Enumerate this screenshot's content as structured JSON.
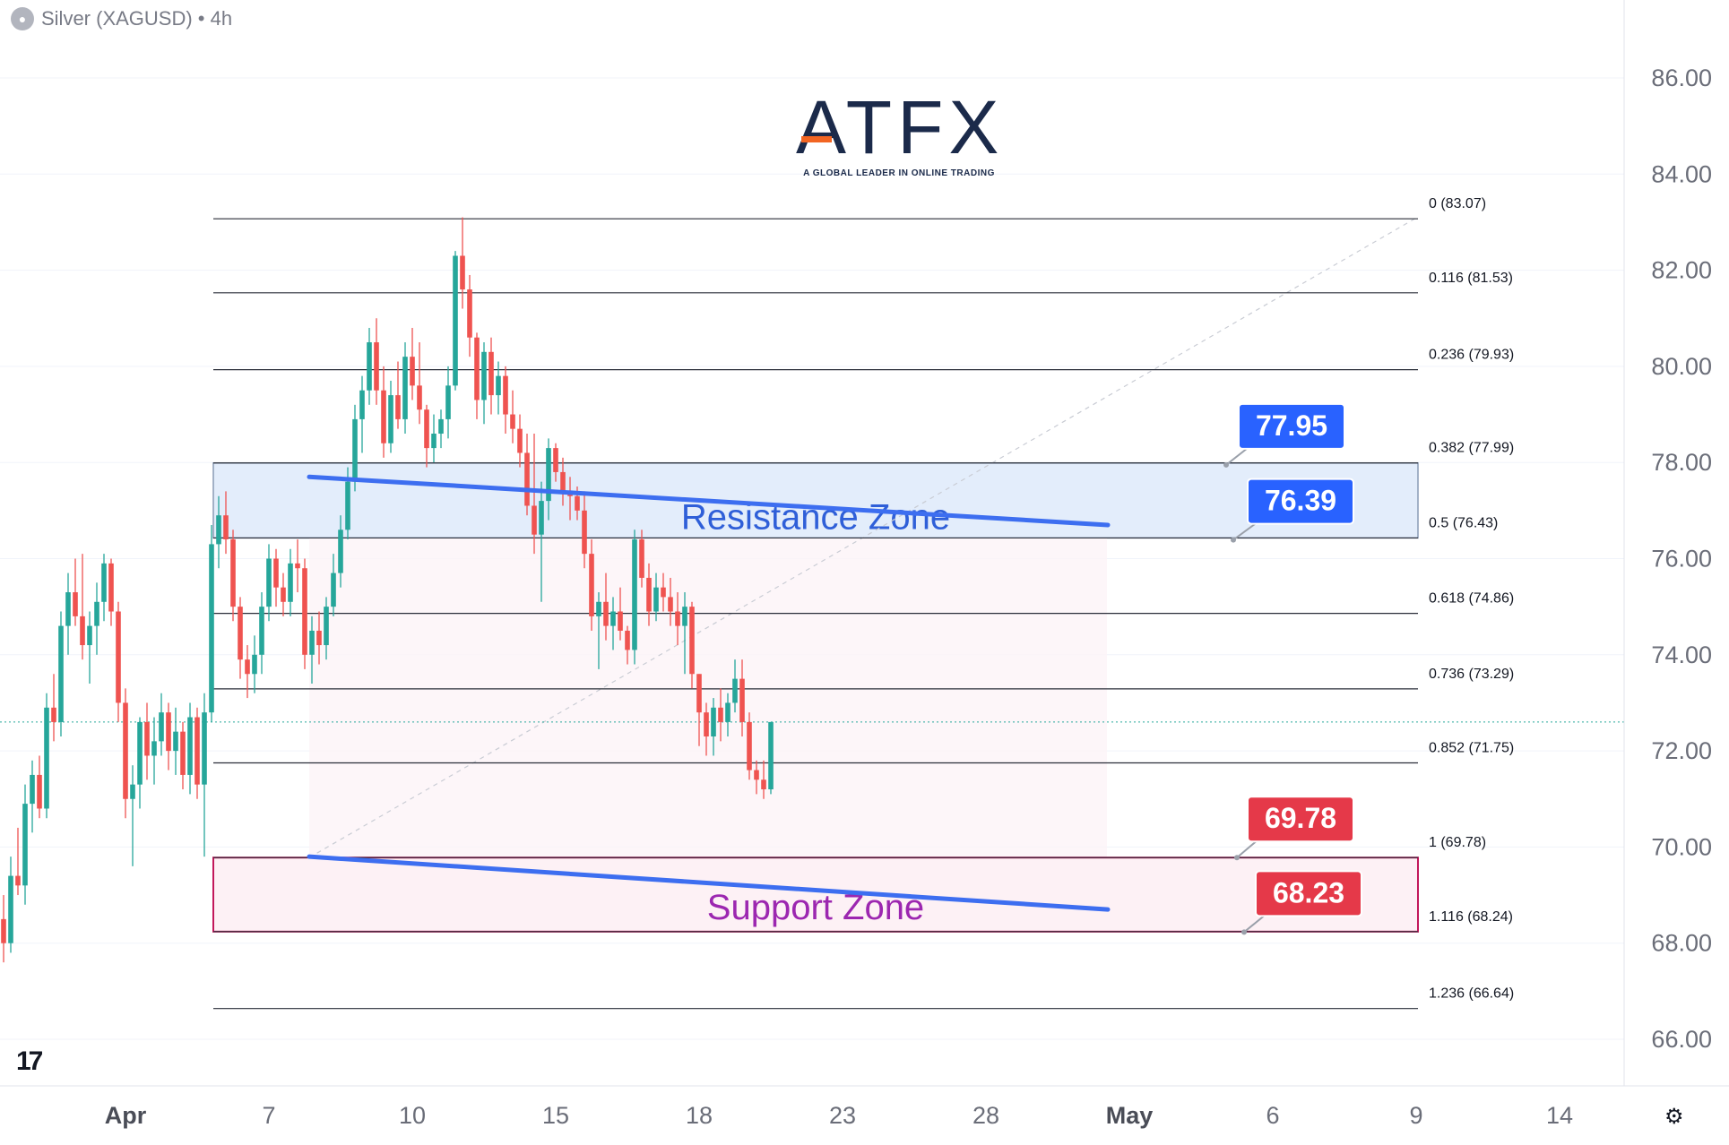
{
  "header": {
    "symbol_icon": "silver-icon",
    "title": "Silver (XAGUSD) • 4h"
  },
  "logo": {
    "text": "ATFX",
    "tagline": "A GLOBAL LEADER IN ONLINE TRADING"
  },
  "tv_mark": "17",
  "settings_icon": "⚙",
  "colors": {
    "up": "#26a69a",
    "down": "#ef5350",
    "trend": "#3d6ef0",
    "resistance_fill": "#e3edfb",
    "support_fill": "#fdf1f5",
    "support_border": "#c2185b",
    "label_blue": "#2962ff",
    "label_red": "#e53949"
  },
  "chart_data": {
    "type": "candlestick",
    "ylim": [
      65.2,
      87.2
    ],
    "y_ticks": [
      "86.00",
      "84.00",
      "82.00",
      "80.00",
      "78.00",
      "76.00",
      "74.00",
      "72.00",
      "70.00",
      "68.00",
      "66.00"
    ],
    "x_ticks": [
      "Apr",
      "7",
      "10",
      "15",
      "18",
      "23",
      "28",
      "May",
      "6",
      "9",
      "14"
    ],
    "grid": true,
    "current_price": 72.6,
    "fib_levels": [
      {
        "label": "0 (83.07)",
        "value": 83.07
      },
      {
        "label": "0.116 (81.53)",
        "value": 81.53
      },
      {
        "label": "0.236 (79.93)",
        "value": 79.93
      },
      {
        "label": "0.382 (77.99)",
        "value": 77.99
      },
      {
        "label": "0.5 (76.43)",
        "value": 76.43
      },
      {
        "label": "0.618 (74.86)",
        "value": 74.86
      },
      {
        "label": "0.736 (73.29)",
        "value": 73.29
      },
      {
        "label": "0.852 (71.75)",
        "value": 71.75
      },
      {
        "label": "1 (69.78)",
        "value": 69.78
      },
      {
        "label": "1.116 (68.24)",
        "value": 68.24
      },
      {
        "label": "1.236 (66.64)",
        "value": 66.64
      }
    ],
    "zones": [
      {
        "name": "Resistance Zone",
        "top": 77.99,
        "bottom": 76.43
      },
      {
        "name": "Support Zone",
        "top": 69.78,
        "bottom": 68.24
      }
    ],
    "price_labels": [
      {
        "text": "77.95",
        "value": 77.95,
        "color": "blue"
      },
      {
        "text": "76.39",
        "value": 76.39,
        "color": "blue"
      },
      {
        "text": "69.78",
        "value": 69.78,
        "color": "red"
      },
      {
        "text": "68.23",
        "value": 68.23,
        "color": "red"
      }
    ],
    "trendlines": [
      {
        "start_value": 77.7,
        "end_value": 76.7
      },
      {
        "start_value": 69.8,
        "end_value": 68.7
      }
    ],
    "candles": [
      [
        68.5,
        69.0,
        67.6,
        68.0
      ],
      [
        68.0,
        69.8,
        67.8,
        69.4
      ],
      [
        69.4,
        70.4,
        69.0,
        69.2
      ],
      [
        69.2,
        71.3,
        68.8,
        70.9
      ],
      [
        70.9,
        71.8,
        70.3,
        71.5
      ],
      [
        71.5,
        71.9,
        70.6,
        70.8
      ],
      [
        70.8,
        73.2,
        70.6,
        72.9
      ],
      [
        72.9,
        73.6,
        72.2,
        72.6
      ],
      [
        72.6,
        74.9,
        72.3,
        74.6
      ],
      [
        74.6,
        75.7,
        74.0,
        75.3
      ],
      [
        75.3,
        76.0,
        74.6,
        74.8
      ],
      [
        74.8,
        76.1,
        73.9,
        74.2
      ],
      [
        74.2,
        74.9,
        73.4,
        74.6
      ],
      [
        74.6,
        75.5,
        74.0,
        75.1
      ],
      [
        75.1,
        76.1,
        74.7,
        75.9
      ],
      [
        75.9,
        76.0,
        74.6,
        74.9
      ],
      [
        74.9,
        75.1,
        72.6,
        73.0
      ],
      [
        73.0,
        73.3,
        70.6,
        71.0
      ],
      [
        71.0,
        71.7,
        69.6,
        71.3
      ],
      [
        71.3,
        72.7,
        70.8,
        72.6
      ],
      [
        72.6,
        73.0,
        71.4,
        71.9
      ],
      [
        71.9,
        72.7,
        71.3,
        72.2
      ],
      [
        72.2,
        73.2,
        71.9,
        72.8
      ],
      [
        72.8,
        73.0,
        71.6,
        72.0
      ],
      [
        72.0,
        72.9,
        71.5,
        72.4
      ],
      [
        72.4,
        72.6,
        71.2,
        71.5
      ],
      [
        71.5,
        73.0,
        71.1,
        72.7
      ],
      [
        72.7,
        72.9,
        71.0,
        71.3
      ],
      [
        71.3,
        73.2,
        69.8,
        72.8
      ],
      [
        72.8,
        76.7,
        72.6,
        76.3
      ],
      [
        76.3,
        77.3,
        75.8,
        76.9
      ],
      [
        76.9,
        77.4,
        76.1,
        76.4
      ],
      [
        76.4,
        76.6,
        74.7,
        75.0
      ],
      [
        75.0,
        75.2,
        73.5,
        73.9
      ],
      [
        73.9,
        74.2,
        73.1,
        73.6
      ],
      [
        73.6,
        74.4,
        73.2,
        74.0
      ],
      [
        74.0,
        75.3,
        73.6,
        75.0
      ],
      [
        75.0,
        76.3,
        74.7,
        76.0
      ],
      [
        76.0,
        76.2,
        75.0,
        75.4
      ],
      [
        75.4,
        75.7,
        74.8,
        75.1
      ],
      [
        75.1,
        76.2,
        74.8,
        75.9
      ],
      [
        75.9,
        76.4,
        75.3,
        75.8
      ],
      [
        75.8,
        76.0,
        73.7,
        74.0
      ],
      [
        74.0,
        74.8,
        73.4,
        74.5
      ],
      [
        74.5,
        74.9,
        73.8,
        74.2
      ],
      [
        74.2,
        75.2,
        73.9,
        75.0
      ],
      [
        75.0,
        76.1,
        74.8,
        75.7
      ],
      [
        75.7,
        76.9,
        75.4,
        76.6
      ],
      [
        76.6,
        77.9,
        76.4,
        77.6
      ],
      [
        77.6,
        79.2,
        77.4,
        78.9
      ],
      [
        78.9,
        79.8,
        78.2,
        79.5
      ],
      [
        79.5,
        80.8,
        79.2,
        80.5
      ],
      [
        80.5,
        81.0,
        79.2,
        79.5
      ],
      [
        79.5,
        80.0,
        78.1,
        78.4
      ],
      [
        78.4,
        79.7,
        78.2,
        79.4
      ],
      [
        79.4,
        80.1,
        78.7,
        78.9
      ],
      [
        78.9,
        80.5,
        78.6,
        80.2
      ],
      [
        80.2,
        80.8,
        79.3,
        79.6
      ],
      [
        79.6,
        80.5,
        78.8,
        79.1
      ],
      [
        79.1,
        79.2,
        77.9,
        78.3
      ],
      [
        78.3,
        79.0,
        78.0,
        78.6
      ],
      [
        78.6,
        79.1,
        78.3,
        78.9
      ],
      [
        78.9,
        80.0,
        78.5,
        79.6
      ],
      [
        79.6,
        82.4,
        79.5,
        82.3
      ],
      [
        82.3,
        83.1,
        81.2,
        81.6
      ],
      [
        81.6,
        81.9,
        80.2,
        80.6
      ],
      [
        80.6,
        80.7,
        78.9,
        79.3
      ],
      [
        79.3,
        80.5,
        78.8,
        80.3
      ],
      [
        80.3,
        80.6,
        79.0,
        79.4
      ],
      [
        79.4,
        80.1,
        79.0,
        79.8
      ],
      [
        79.8,
        80.0,
        78.6,
        79.0
      ],
      [
        79.0,
        79.5,
        78.4,
        78.7
      ],
      [
        78.7,
        79.0,
        77.9,
        78.2
      ],
      [
        78.2,
        78.6,
        76.9,
        77.1
      ],
      [
        77.1,
        78.6,
        76.1,
        76.5
      ],
      [
        76.5,
        77.6,
        75.1,
        77.2
      ],
      [
        77.2,
        78.5,
        76.8,
        78.3
      ],
      [
        78.3,
        78.4,
        77.6,
        77.8
      ],
      [
        77.8,
        78.1,
        77.1,
        77.4
      ],
      [
        77.4,
        77.7,
        76.8,
        77.3
      ],
      [
        77.3,
        77.5,
        76.8,
        77.0
      ],
      [
        77.0,
        77.4,
        75.8,
        76.1
      ],
      [
        76.1,
        76.4,
        74.5,
        74.8
      ],
      [
        74.8,
        75.3,
        73.7,
        75.1
      ],
      [
        75.1,
        75.7,
        74.3,
        74.6
      ],
      [
        74.6,
        75.2,
        74.1,
        74.9
      ],
      [
        74.9,
        75.4,
        74.3,
        74.5
      ],
      [
        74.5,
        74.6,
        73.8,
        74.1
      ],
      [
        74.1,
        76.6,
        73.8,
        76.4
      ],
      [
        76.4,
        76.6,
        75.4,
        75.6
      ],
      [
        75.6,
        75.9,
        74.6,
        74.9
      ],
      [
        74.9,
        75.7,
        74.7,
        75.4
      ],
      [
        75.4,
        75.7,
        74.9,
        75.2
      ],
      [
        75.2,
        75.6,
        74.6,
        74.9
      ],
      [
        74.9,
        75.3,
        74.2,
        74.6
      ],
      [
        74.6,
        75.3,
        73.6,
        75.0
      ],
      [
        75.0,
        75.1,
        73.3,
        73.6
      ],
      [
        73.6,
        73.6,
        72.1,
        72.8
      ],
      [
        72.8,
        73.0,
        71.9,
        72.3
      ],
      [
        72.3,
        73.1,
        71.9,
        72.9
      ],
      [
        72.9,
        73.3,
        72.2,
        72.6
      ],
      [
        72.6,
        73.2,
        72.3,
        73.0
      ],
      [
        73.0,
        73.9,
        72.8,
        73.5
      ],
      [
        73.5,
        73.9,
        72.3,
        72.6
      ],
      [
        72.6,
        72.8,
        71.4,
        71.6
      ],
      [
        71.6,
        71.8,
        71.1,
        71.4
      ],
      [
        71.4,
        71.8,
        71.0,
        71.2
      ],
      [
        71.2,
        72.6,
        71.1,
        72.6
      ]
    ]
  }
}
